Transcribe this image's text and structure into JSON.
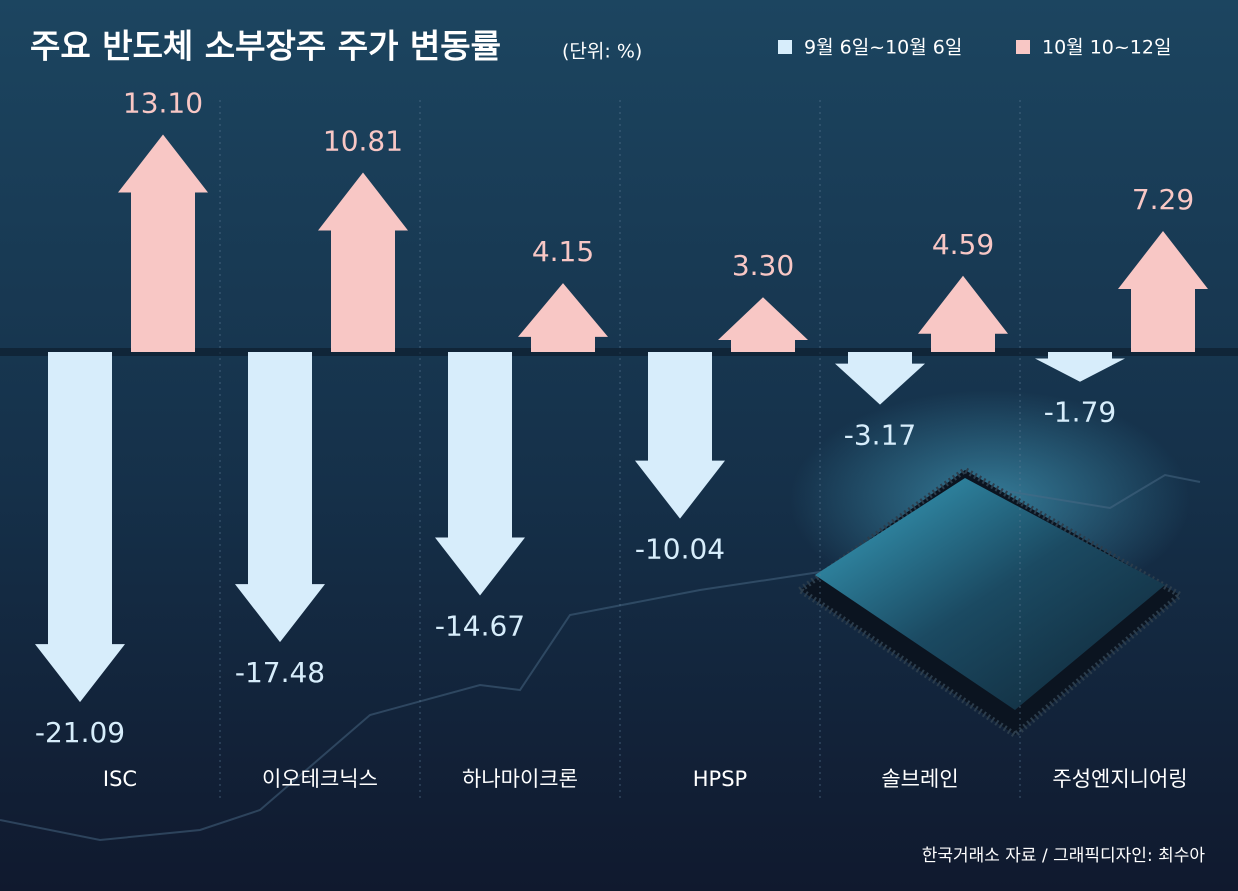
{
  "chart_data": {
    "type": "bar",
    "title": "주요 반도체 소부장주 주가 변동률",
    "unit_label": "(단위: %)",
    "source": "한국거래소 자료 / 그래픽디자인: 최수아",
    "categories": [
      "ISC",
      "이오테크닉스",
      "하나마이크론",
      "HPSP",
      "솔브레인",
      "주성엔지니어링"
    ],
    "series": [
      {
        "name": "9월 6일~10월 6일",
        "color": "#d7edfb",
        "values": [
          -21.09,
          -17.48,
          -14.67,
          -10.04,
          -3.17,
          -1.79
        ],
        "value_labels": [
          "-21.09",
          "-17.48",
          "-14.67",
          "-10.04",
          "-3.17",
          "-1.79"
        ]
      },
      {
        "name": "10월 10~12일",
        "color": "#f8c7c5",
        "values": [
          13.1,
          10.81,
          4.15,
          3.3,
          4.59,
          7.29
        ],
        "value_labels": [
          "13.10",
          "10.81",
          "4.15",
          "3.30",
          "4.59",
          "7.29"
        ]
      }
    ]
  }
}
